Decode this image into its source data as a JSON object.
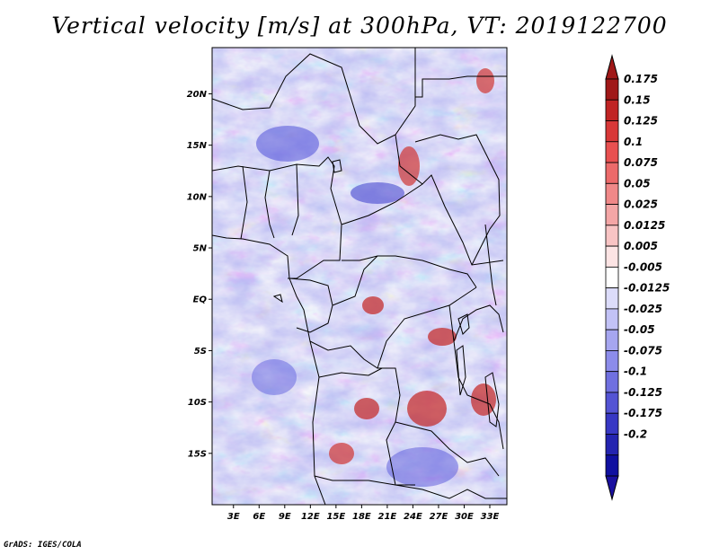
{
  "title": "Vertical velocity [m/s] at 300hPa, VT: 2019122700",
  "credit": "GrADS: IGES/COLA",
  "lat_labels": [
    "20N",
    "15N",
    "10N",
    "5N",
    "EQ",
    "5S",
    "10S",
    "15S"
  ],
  "lat_values": [
    20,
    15,
    10,
    5,
    0,
    -5,
    -10,
    -15
  ],
  "lon_labels": [
    "3E",
    "6E",
    "9E",
    "12E",
    "15E",
    "18E",
    "21E",
    "24E",
    "27E",
    "30E",
    "33E"
  ],
  "lon_values": [
    3,
    6,
    9,
    12,
    15,
    18,
    21,
    24,
    27,
    30,
    33
  ],
  "map_extent": {
    "lon_min": 0.5,
    "lon_max": 35,
    "lat_min": -20,
    "lat_max": 24.5
  },
  "colorbar": {
    "labels": [
      "0.175",
      "0.15",
      "0.125",
      "0.1",
      "0.075",
      "0.05",
      "0.025",
      "0.0125",
      "0.005",
      "-0.005",
      "-0.0125",
      "-0.025",
      "-0.05",
      "-0.075",
      "-0.1",
      "-0.125",
      "-0.175",
      "-0.2"
    ],
    "colors": [
      "#a01818",
      "#c02424",
      "#d83838",
      "#e85050",
      "#ec6a6a",
      "#f08888",
      "#f4a6a6",
      "#f8c4c4",
      "#fce4e4",
      "#ffffff",
      "#dcdcfa",
      "#c2c2f6",
      "#a6a6f0",
      "#8c8cea",
      "#7070e0",
      "#5454d4",
      "#3838c4",
      "#2424b0",
      "#1010a0"
    ],
    "top_arrow_color": "#a01818",
    "bottom_arrow_color": "#1a10a0"
  }
}
